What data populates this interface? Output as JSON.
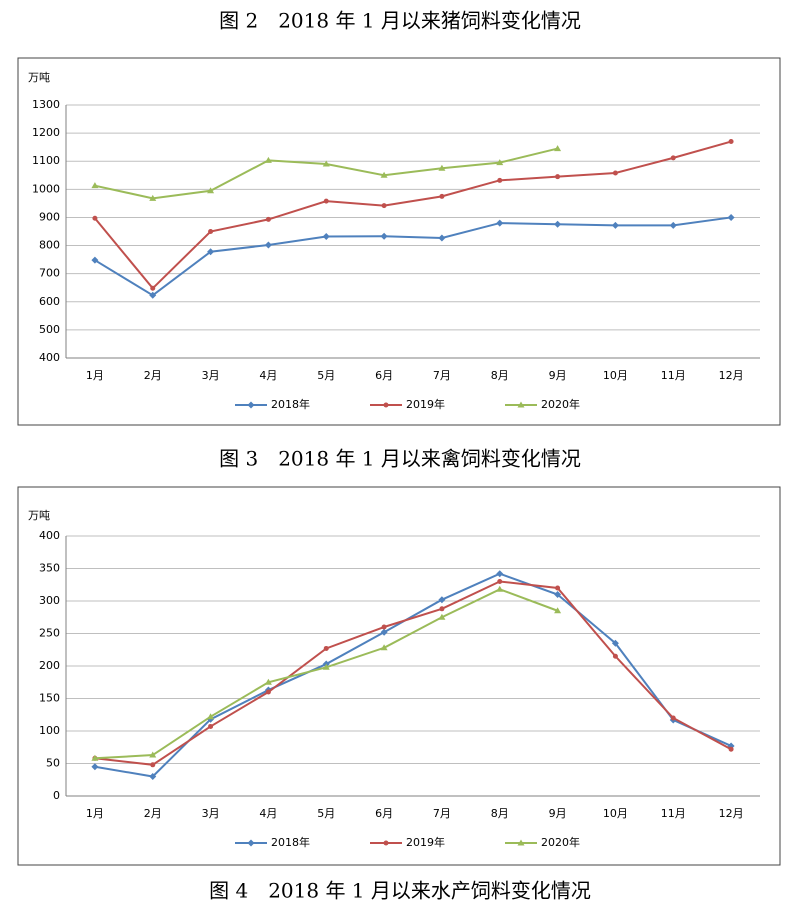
{
  "captions": [
    "图 2　2018 年 1 月以来猪饲料变化情况",
    "图 3　2018 年 1 月以来禽饲料变化情况",
    "图 4　2018 年 1 月以来水产饲料变化情况"
  ],
  "chart_data": [
    {
      "type": "line",
      "ylabel": "万吨",
      "categories": [
        "1月",
        "2月",
        "3月",
        "4月",
        "5月",
        "6月",
        "7月",
        "8月",
        "9月",
        "10月",
        "11月",
        "12月"
      ],
      "series": [
        {
          "name": "2018年",
          "color": "#4f81bd",
          "values": [
            748,
            623,
            778,
            802,
            832,
            833,
            827,
            880,
            876,
            872,
            872,
            900
          ]
        },
        {
          "name": "2019年",
          "color": "#c0504d",
          "values": [
            897,
            648,
            850,
            893,
            958,
            942,
            975,
            1032,
            1045,
            1058,
            1112,
            1170
          ]
        },
        {
          "name": "2020年",
          "color": "#9bbb59",
          "values": [
            1013,
            968,
            995,
            1103,
            1090,
            1050,
            1075,
            1095,
            1145,
            null,
            null,
            null
          ]
        }
      ],
      "ylim": [
        400,
        1300
      ],
      "yticks": [
        400,
        500,
        600,
        700,
        800,
        900,
        1000,
        1100,
        1200,
        1300
      ],
      "grid": true,
      "legend": "bottom"
    },
    {
      "type": "line",
      "ylabel": "万吨",
      "categories": [
        "1月",
        "2月",
        "3月",
        "4月",
        "5月",
        "6月",
        "7月",
        "8月",
        "9月",
        "10月",
        "11月",
        "12月"
      ],
      "series": [
        {
          "name": "2018年",
          "color": "#4f81bd",
          "values": [
            45,
            30,
            118,
            163,
            203,
            252,
            302,
            342,
            310,
            235,
            117,
            77
          ]
        },
        {
          "name": "2019年",
          "color": "#c0504d",
          "values": [
            58,
            48,
            107,
            160,
            227,
            260,
            288,
            330,
            320,
            215,
            120,
            72
          ]
        },
        {
          "name": "2020年",
          "color": "#9bbb59",
          "values": [
            58,
            63,
            122,
            175,
            198,
            228,
            275,
            318,
            285,
            null,
            null,
            null
          ]
        }
      ],
      "ylim": [
        0,
        400
      ],
      "yticks": [
        0,
        50,
        100,
        150,
        200,
        250,
        300,
        350,
        400
      ],
      "grid": true,
      "legend": "bottom"
    }
  ]
}
